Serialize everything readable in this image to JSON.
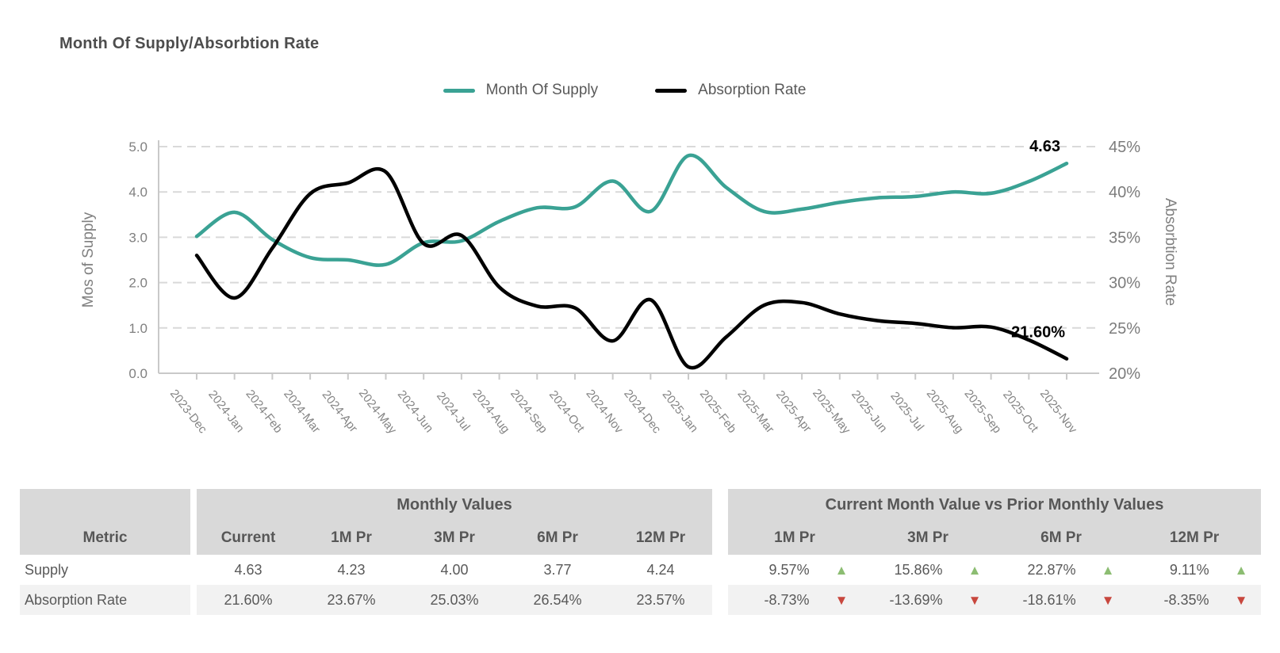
{
  "title": "Month Of Supply/Absorbtion Rate",
  "legend": [
    {
      "label": "Month Of Supply",
      "color": "#3aa294"
    },
    {
      "label": "Absorption Rate",
      "color": "#000000"
    }
  ],
  "chart_data": {
    "type": "line",
    "title": "Month Of Supply/Absorbtion Rate",
    "x": [
      "2023-Dec",
      "2024-Jan",
      "2024-Feb",
      "2024-Mar",
      "2024-Apr",
      "2024-May",
      "2024-Jun",
      "2024-Jul",
      "2024-Aug",
      "2024-Sep",
      "2024-Oct",
      "2024-Nov",
      "2024-Dec",
      "2025-Jan",
      "2025-Feb",
      "2025-Mar",
      "2025-Apr",
      "2025-May",
      "2025-Jun",
      "2025-Jul",
      "2025-Aug",
      "2025-Sep",
      "2025-Oct",
      "2025-Nov"
    ],
    "series": [
      {
        "name": "Month Of Supply",
        "axis": "left",
        "color": "#3aa294",
        "values": [
          3.02,
          3.55,
          2.95,
          2.55,
          2.5,
          2.4,
          2.88,
          2.92,
          3.35,
          3.65,
          3.67,
          4.24,
          3.57,
          4.8,
          4.1,
          3.57,
          3.62,
          3.77,
          3.87,
          3.9,
          4.0,
          3.97,
          4.23,
          4.63
        ],
        "end_label": "4.63"
      },
      {
        "name": "Absorption Rate",
        "axis": "right",
        "color": "#000000",
        "values": [
          33.0,
          28.3,
          33.8,
          39.8,
          41.0,
          42.2,
          34.3,
          35.2,
          29.5,
          27.4,
          27.2,
          23.57,
          28.1,
          20.7,
          24.0,
          27.5,
          27.8,
          26.54,
          25.8,
          25.5,
          25.03,
          25.1,
          23.67,
          21.6
        ],
        "end_label": "21.60%"
      }
    ],
    "left_axis": {
      "label": "Mos of Supply",
      "ticks": [
        "5.0",
        "4.0",
        "3.0",
        "2.0",
        "1.0",
        "0.0"
      ],
      "min": 0,
      "max": 5
    },
    "right_axis": {
      "label": "Absorbtion Rate",
      "ticks": [
        "45%",
        "40%",
        "35%",
        "30%",
        "25%",
        "20%"
      ],
      "min": 20,
      "max": 45
    },
    "grid": "dashed-horizontal",
    "legend_position": "top-center"
  },
  "table": {
    "metric_header": "Metric",
    "group_headers": [
      "Monthly Values",
      "Current Month Value vs Prior Monthly Values"
    ],
    "monthly_columns": [
      "Current",
      "1M Pr",
      "3M Pr",
      "6M Pr",
      "12M Pr"
    ],
    "comparison_columns": [
      "1M Pr",
      "3M Pr",
      "6M Pr",
      "12M Pr"
    ],
    "rows": [
      {
        "metric": "Supply",
        "monthly": [
          "4.63",
          "4.23",
          "4.00",
          "3.77",
          "4.24"
        ],
        "comparison": [
          {
            "value": "9.57%",
            "direction": "up",
            "icon": "▲"
          },
          {
            "value": "15.86%",
            "direction": "up",
            "icon": "▲"
          },
          {
            "value": "22.87%",
            "direction": "up",
            "icon": "▲"
          },
          {
            "value": "9.11%",
            "direction": "up",
            "icon": "▲"
          }
        ]
      },
      {
        "metric": "Absorption Rate",
        "monthly": [
          "21.60%",
          "23.67%",
          "25.03%",
          "26.54%",
          "23.57%"
        ],
        "comparison": [
          {
            "value": "-8.73%",
            "direction": "down",
            "icon": "▼"
          },
          {
            "value": "-13.69%",
            "direction": "down",
            "icon": "▼"
          },
          {
            "value": "-18.61%",
            "direction": "down",
            "icon": "▼"
          },
          {
            "value": "-8.35%",
            "direction": "down",
            "icon": "▼"
          }
        ]
      }
    ],
    "colors": {
      "up": "#8cbd72",
      "down": "#c8473e",
      "header_bg": "#d9d9d9",
      "alt_row_bg": "#f2f2f2"
    }
  }
}
